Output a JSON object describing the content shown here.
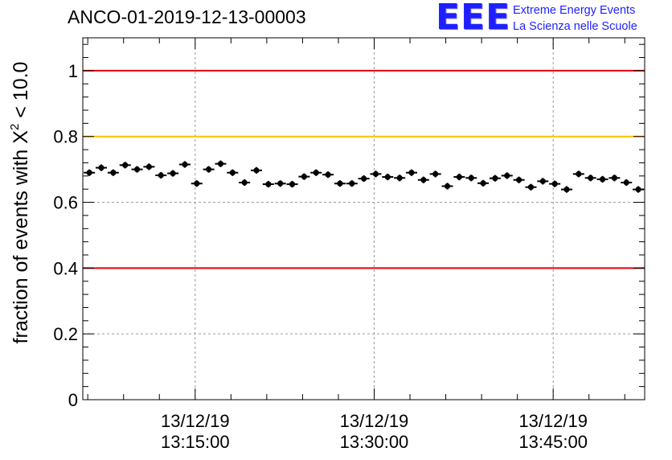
{
  "title": "ANCO-01-2019-12-13-00003",
  "logo": {
    "mark": "EEE",
    "line1": "Extreme Energy Events",
    "line2": "La Scienza nelle Scuole"
  },
  "colors": {
    "axis": "#000000",
    "grid": "#9a9a9a",
    "marker": "#000000",
    "limit_red": "#e8000b",
    "limit_yellow": "#ffc000",
    "logo": "#1f1fff"
  },
  "chart_data": {
    "type": "scatter",
    "title": "ANCO-01-2019-12-13-00003",
    "xlabel": "",
    "ylabel_main": "fraction of events with X",
    "ylabel_sup": "2",
    "ylabel_tail": " < 10.0",
    "xlim": [
      "13:05:35",
      "13:52:40"
    ],
    "ylim": [
      0,
      1.1
    ],
    "yticks": [
      0,
      0.2,
      0.4,
      0.6,
      0.8,
      1
    ],
    "ytick_labels": [
      "0",
      "0.2",
      "0.4",
      "0.6",
      "0.8",
      "1"
    ],
    "xticks": [
      "13:15:00",
      "13:30:00",
      "13:45:00"
    ],
    "xtick_labels": [
      {
        "date": "13/12/19",
        "time": "13:15:00"
      },
      {
        "date": "13/12/19",
        "time": "13:30:00"
      },
      {
        "date": "13/12/19",
        "time": "13:45:00"
      }
    ],
    "grid": true,
    "reference_lines": [
      {
        "y": 1.0,
        "color": "#e8000b"
      },
      {
        "y": 0.8,
        "color": "#ffc000"
      },
      {
        "y": 0.4,
        "color": "#e8000b"
      }
    ],
    "series": [
      {
        "x": [
          "13:06:08",
          "13:07:08",
          "13:08:08",
          "13:09:08",
          "13:10:08",
          "13:11:08",
          "13:12:08",
          "13:13:08",
          "13:14:08",
          "13:15:08",
          "13:16:08",
          "13:17:08",
          "13:18:08",
          "13:19:08",
          "13:20:08",
          "13:21:08",
          "13:22:08",
          "13:23:08",
          "13:24:08",
          "13:25:08",
          "13:26:08",
          "13:27:08",
          "13:28:08",
          "13:29:08",
          "13:30:08",
          "13:31:08",
          "13:32:08",
          "13:33:08",
          "13:34:08",
          "13:35:08",
          "13:36:08",
          "13:37:08",
          "13:38:08",
          "13:39:08",
          "13:40:08",
          "13:41:08",
          "13:42:08",
          "13:43:08",
          "13:44:08",
          "13:45:08",
          "13:46:08",
          "13:47:08",
          "13:48:08",
          "13:49:08",
          "13:50:08",
          "13:51:08",
          "13:52:08"
        ],
        "y": [
          0.69,
          0.705,
          0.69,
          0.713,
          0.7,
          0.708,
          0.682,
          0.688,
          0.715,
          0.657,
          0.7,
          0.717,
          0.69,
          0.66,
          0.697,
          0.655,
          0.657,
          0.655,
          0.678,
          0.69,
          0.684,
          0.657,
          0.657,
          0.672,
          0.686,
          0.677,
          0.674,
          0.69,
          0.668,
          0.686,
          0.649,
          0.677,
          0.674,
          0.658,
          0.673,
          0.681,
          0.668,
          0.646,
          0.664,
          0.656,
          0.639,
          0.686,
          0.674,
          0.67,
          0.674,
          0.66,
          0.639
        ],
        "yerr": 0.01
      }
    ]
  }
}
